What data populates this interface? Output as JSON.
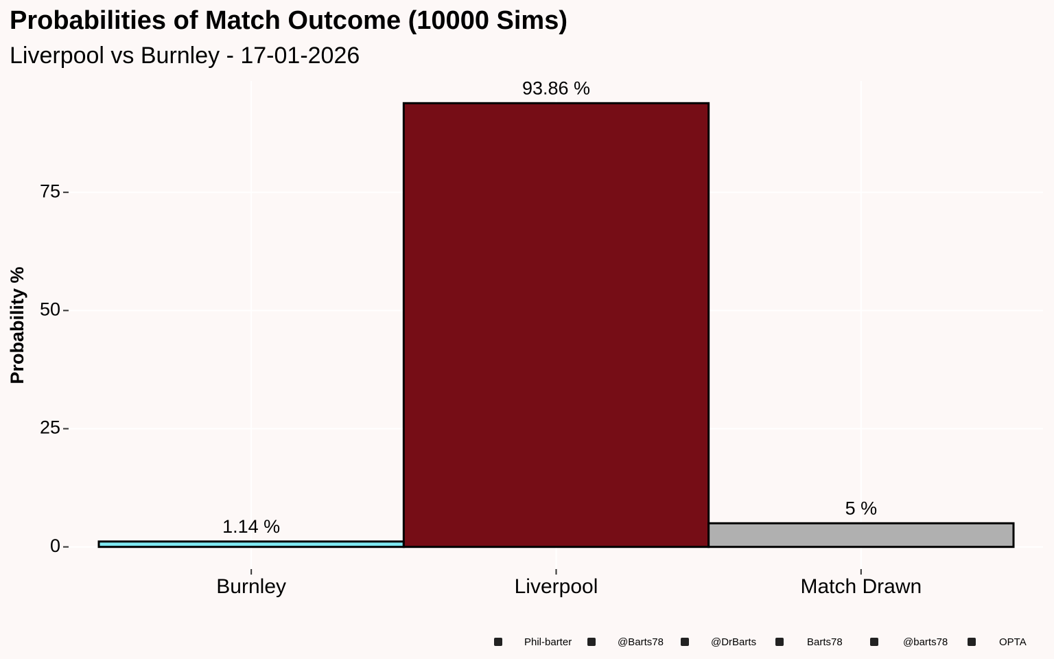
{
  "chart_data": {
    "type": "bar",
    "title": "Probabilities of Match Outcome (10000 Sims)",
    "subtitle": "Liverpool vs Burnley - 17-01-2026",
    "y_label": "Probability %",
    "categories": [
      "Burnley",
      "Liverpool",
      "Match Drawn"
    ],
    "values": [
      1.14,
      93.86,
      5
    ],
    "value_labels": [
      "1.14  %",
      "93.86  %",
      "5  %"
    ],
    "colors": [
      "#7ee9f2",
      "#760d16",
      "#b0b0b0"
    ],
    "ylim": [
      -4.69,
      98.55
    ],
    "yticks": [
      0,
      25,
      50,
      75
    ],
    "grid": true,
    "caption": [
      "Phil-barter",
      "@Barts78",
      "@DrBarts",
      "Barts78",
      "@barts78",
      "OPTA"
    ]
  }
}
